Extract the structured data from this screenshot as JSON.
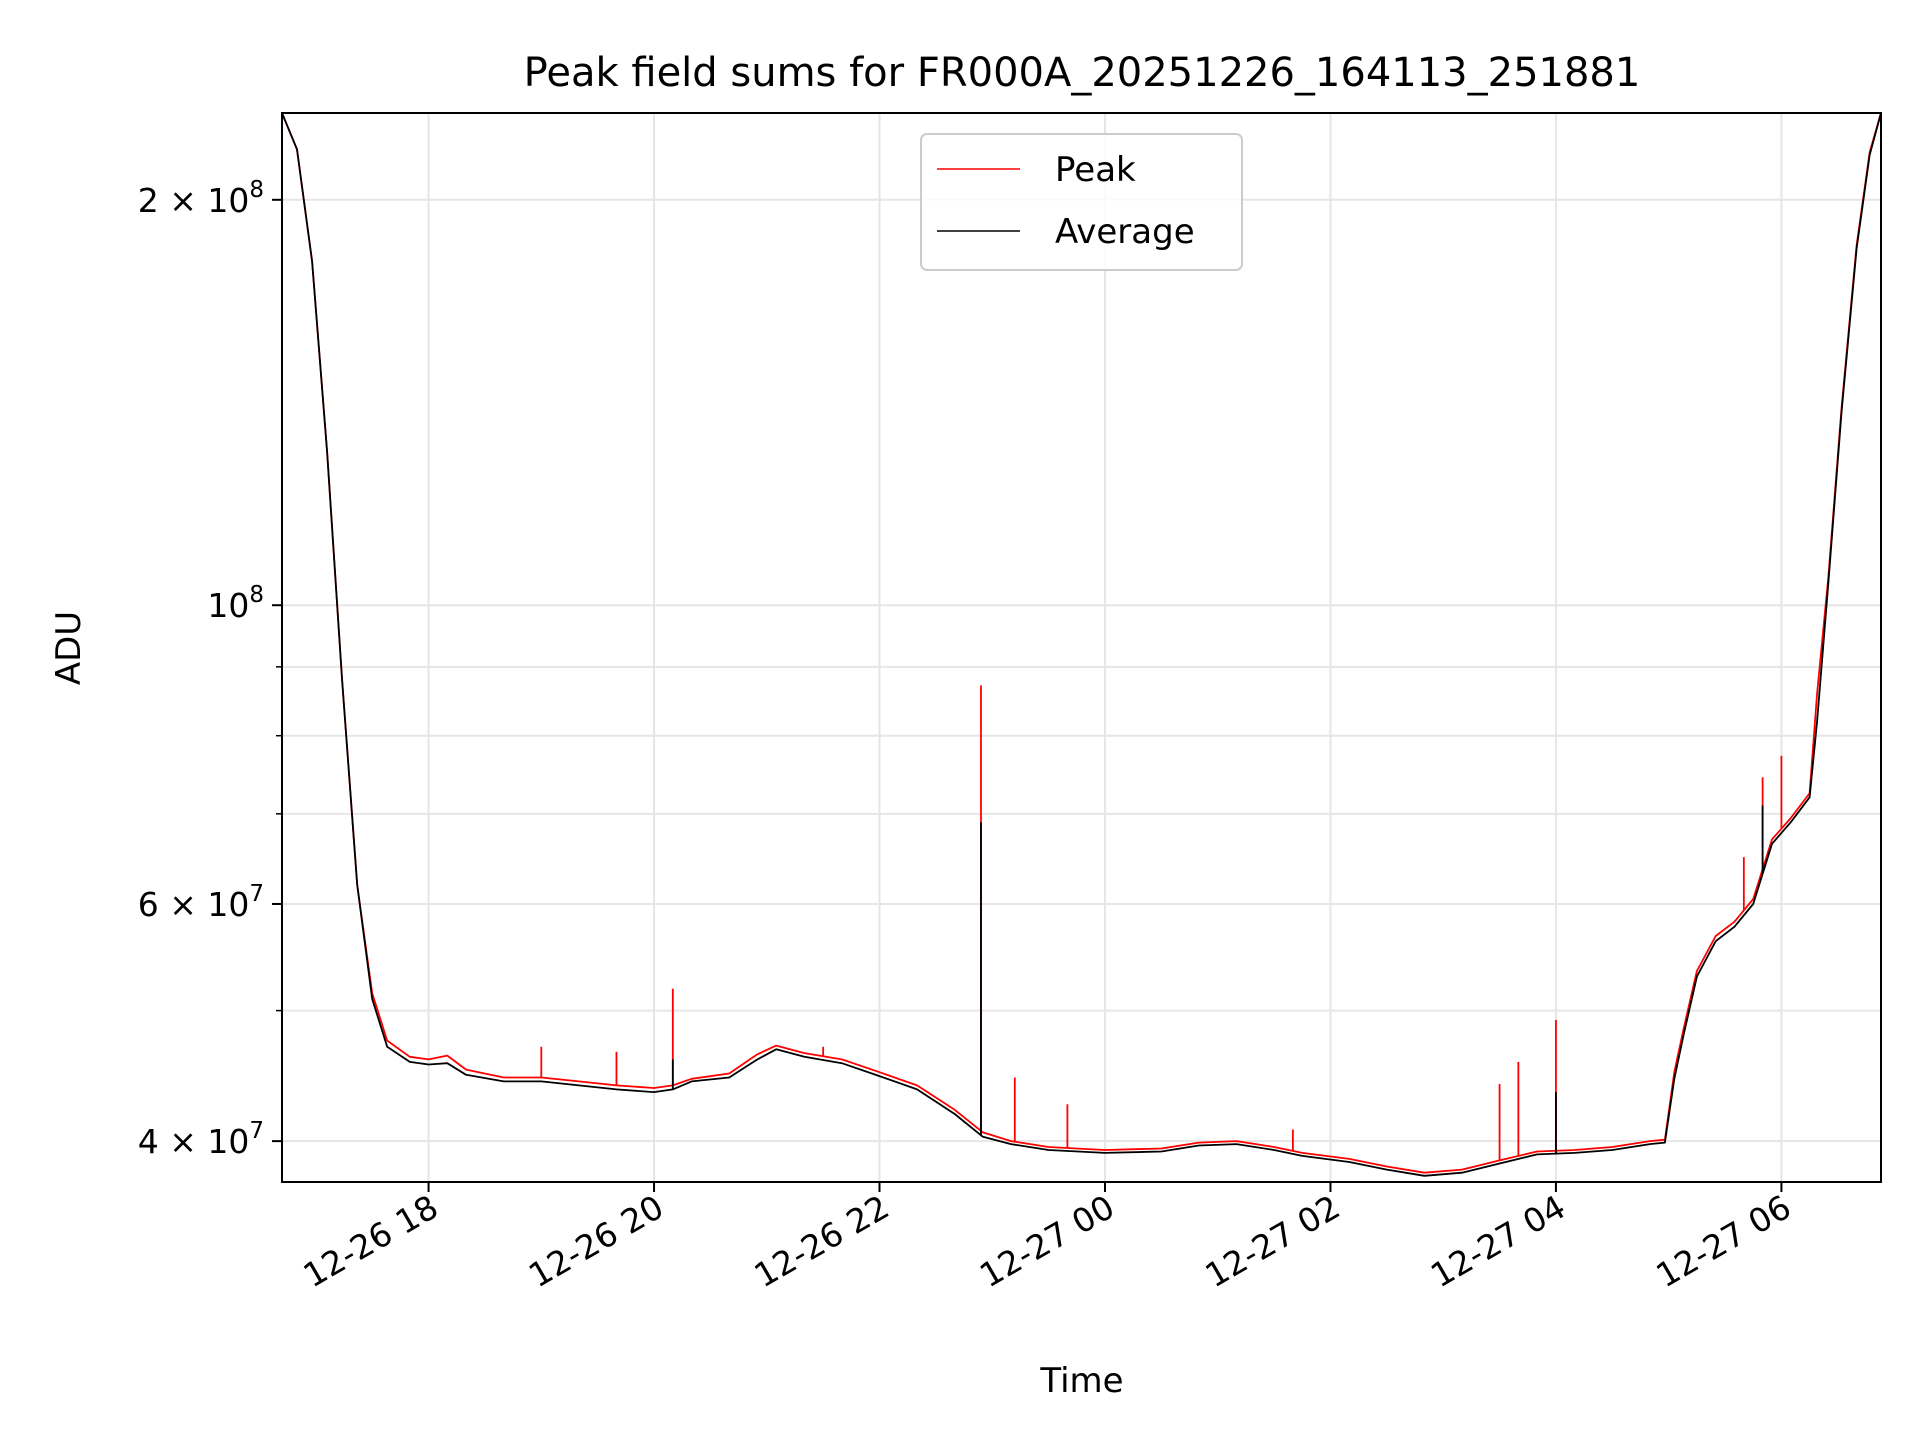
{
  "chart_data": {
    "type": "line",
    "title": "Peak field sums for FR000A_20251226_164113_251881",
    "xlabel": "Time",
    "ylabel": "ADU",
    "yscale": "log",
    "ylim": [
      37300000,
      232000000
    ],
    "xlim": [
      "2025-12-26 16:42",
      "2025-12-27 06:53"
    ],
    "grid": true,
    "legend_position": "top-center",
    "x_ticks": [
      "12-26 18",
      "12-26 20",
      "12-26 22",
      "12-27 00",
      "12-27 02",
      "12-27 04",
      "12-27 06"
    ],
    "x_tick_values": [
      "2025-12-26 18:00",
      "2025-12-26 20:00",
      "2025-12-26 22:00",
      "2025-12-27 00:00",
      "2025-12-27 02:00",
      "2025-12-27 04:00",
      "2025-12-27 06:00"
    ],
    "y_major_ticks": [
      {
        "value": 40000000,
        "mantissa": "4",
        "exponent": "7"
      },
      {
        "value": 60000000,
        "mantissa": "6",
        "exponent": "7"
      },
      {
        "value": 100000000,
        "mantissa": "",
        "exponent": "8"
      },
      {
        "value": 200000000,
        "mantissa": "2",
        "exponent": "8"
      }
    ],
    "y_tick_base": "10",
    "y_tick_times": "×",
    "y_minor_ticks": [
      50000000,
      70000000,
      80000000,
      90000000
    ],
    "series": [
      {
        "name": "Peak",
        "color": "#ff0000",
        "data": [
          [
            "2025-12-26 16:42",
            232000000
          ],
          [
            "2025-12-26 16:50",
            218000000
          ],
          [
            "2025-12-26 16:58",
            180000000
          ],
          [
            "2025-12-26 17:06",
            130000000
          ],
          [
            "2025-12-26 17:14",
            88000000
          ],
          [
            "2025-12-26 17:22",
            62000000
          ],
          [
            "2025-12-26 17:30",
            51500000
          ],
          [
            "2025-12-26 17:38",
            47500000
          ],
          [
            "2025-12-26 17:50",
            46200000
          ],
          [
            "2025-12-26 18:00",
            46000000
          ],
          [
            "2025-12-26 18:10",
            46300000
          ],
          [
            "2025-12-26 18:20",
            45200000
          ],
          [
            "2025-12-26 18:40",
            44600000
          ],
          [
            "2025-12-26 19:00",
            44600000
          ],
          [
            "2025-12-26 19:20",
            44300000
          ],
          [
            "2025-12-26 19:40",
            44000000
          ],
          [
            "2025-12-26 20:00",
            43800000
          ],
          [
            "2025-12-26 20:10",
            44000000
          ],
          [
            "2025-12-26 20:20",
            44500000
          ],
          [
            "2025-12-26 20:40",
            44900000
          ],
          [
            "2025-12-26 20:55",
            46400000
          ],
          [
            "2025-12-26 21:05",
            47100000
          ],
          [
            "2025-12-26 21:20",
            46500000
          ],
          [
            "2025-12-26 21:40",
            46000000
          ],
          [
            "2025-12-26 22:00",
            45000000
          ],
          [
            "2025-12-26 22:20",
            44000000
          ],
          [
            "2025-12-26 22:40",
            42200000
          ],
          [
            "2025-12-26 22:55",
            40600000
          ],
          [
            "2025-12-26 23:10",
            40000000
          ],
          [
            "2025-12-26 23:30",
            39600000
          ],
          [
            "2025-12-27 00:00",
            39400000
          ],
          [
            "2025-12-27 00:30",
            39500000
          ],
          [
            "2025-12-27 00:50",
            39900000
          ],
          [
            "2025-12-27 01:10",
            40000000
          ],
          [
            "2025-12-27 01:30",
            39600000
          ],
          [
            "2025-12-27 01:45",
            39200000
          ],
          [
            "2025-12-27 02:10",
            38800000
          ],
          [
            "2025-12-27 02:30",
            38300000
          ],
          [
            "2025-12-27 02:50",
            37900000
          ],
          [
            "2025-12-27 03:10",
            38100000
          ],
          [
            "2025-12-27 03:30",
            38700000
          ],
          [
            "2025-12-27 03:50",
            39300000
          ],
          [
            "2025-12-27 04:10",
            39400000
          ],
          [
            "2025-12-27 04:30",
            39600000
          ],
          [
            "2025-12-27 04:50",
            40000000
          ],
          [
            "2025-12-27 04:58",
            40100000
          ],
          [
            "2025-12-27 05:03",
            45000000
          ],
          [
            "2025-12-27 05:08",
            48500000
          ],
          [
            "2025-12-27 05:15",
            53500000
          ],
          [
            "2025-12-27 05:25",
            56800000
          ],
          [
            "2025-12-27 05:35",
            58200000
          ],
          [
            "2025-12-27 05:45",
            60500000
          ],
          [
            "2025-12-27 05:55",
            67000000
          ],
          [
            "2025-12-27 06:05",
            69500000
          ],
          [
            "2025-12-27 06:15",
            72500000
          ],
          [
            "2025-12-27 06:19",
            86000000
          ],
          [
            "2025-12-27 06:25",
            105000000
          ],
          [
            "2025-12-27 06:32",
            140000000
          ],
          [
            "2025-12-27 06:40",
            185000000
          ],
          [
            "2025-12-27 06:47",
            217000000
          ],
          [
            "2025-12-27 06:53",
            232000000
          ]
        ],
        "spikes": [
          [
            "2025-12-26 19:00",
            47000000
          ],
          [
            "2025-12-26 19:40",
            46600000
          ],
          [
            "2025-12-26 20:10",
            51900000
          ],
          [
            "2025-12-26 21:30",
            47000000
          ],
          [
            "2025-12-26 22:54",
            87200000
          ],
          [
            "2025-12-26 23:12",
            44600000
          ],
          [
            "2025-12-26 23:40",
            42600000
          ],
          [
            "2025-12-27 01:40",
            40800000
          ],
          [
            "2025-12-27 03:30",
            44100000
          ],
          [
            "2025-12-27 03:40",
            45800000
          ],
          [
            "2025-12-27 04:00",
            49200000
          ],
          [
            "2025-12-27 05:40",
            65000000
          ],
          [
            "2025-12-27 05:50",
            74500000
          ],
          [
            "2025-12-27 06:00",
            77300000
          ]
        ]
      },
      {
        "name": "Average",
        "color": "#000000",
        "data": [
          [
            "2025-12-26 16:42",
            232000000
          ],
          [
            "2025-12-26 16:50",
            218000000
          ],
          [
            "2025-12-26 16:58",
            180000000
          ],
          [
            "2025-12-26 17:06",
            130000000
          ],
          [
            "2025-12-26 17:14",
            88000000
          ],
          [
            "2025-12-26 17:22",
            62000000
          ],
          [
            "2025-12-26 17:30",
            51000000
          ],
          [
            "2025-12-26 17:38",
            47000000
          ],
          [
            "2025-12-26 17:50",
            45800000
          ],
          [
            "2025-12-26 18:00",
            45600000
          ],
          [
            "2025-12-26 18:10",
            45700000
          ],
          [
            "2025-12-26 18:20",
            44800000
          ],
          [
            "2025-12-26 18:40",
            44300000
          ],
          [
            "2025-12-26 19:00",
            44300000
          ],
          [
            "2025-12-26 19:20",
            44000000
          ],
          [
            "2025-12-26 19:40",
            43700000
          ],
          [
            "2025-12-26 20:00",
            43500000
          ],
          [
            "2025-12-26 20:10",
            43700000
          ],
          [
            "2025-12-26 20:20",
            44300000
          ],
          [
            "2025-12-26 20:40",
            44600000
          ],
          [
            "2025-12-26 20:55",
            46000000
          ],
          [
            "2025-12-26 21:05",
            46800000
          ],
          [
            "2025-12-26 21:20",
            46200000
          ],
          [
            "2025-12-26 21:40",
            45700000
          ],
          [
            "2025-12-26 22:00",
            44700000
          ],
          [
            "2025-12-26 22:20",
            43700000
          ],
          [
            "2025-12-26 22:40",
            41900000
          ],
          [
            "2025-12-26 22:55",
            40300000
          ],
          [
            "2025-12-26 23:10",
            39800000
          ],
          [
            "2025-12-26 23:30",
            39400000
          ],
          [
            "2025-12-27 00:00",
            39200000
          ],
          [
            "2025-12-27 00:30",
            39300000
          ],
          [
            "2025-12-27 00:50",
            39700000
          ],
          [
            "2025-12-27 01:10",
            39800000
          ],
          [
            "2025-12-27 01:30",
            39400000
          ],
          [
            "2025-12-27 01:45",
            39000000
          ],
          [
            "2025-12-27 02:10",
            38600000
          ],
          [
            "2025-12-27 02:30",
            38100000
          ],
          [
            "2025-12-27 02:50",
            37700000
          ],
          [
            "2025-12-27 03:10",
            37900000
          ],
          [
            "2025-12-27 03:30",
            38500000
          ],
          [
            "2025-12-27 03:50",
            39100000
          ],
          [
            "2025-12-27 04:10",
            39200000
          ],
          [
            "2025-12-27 04:30",
            39400000
          ],
          [
            "2025-12-27 04:50",
            39800000
          ],
          [
            "2025-12-27 04:58",
            39900000
          ],
          [
            "2025-12-27 05:03",
            44500000
          ],
          [
            "2025-12-27 05:08",
            48000000
          ],
          [
            "2025-12-27 05:15",
            53000000
          ],
          [
            "2025-12-27 05:25",
            56300000
          ],
          [
            "2025-12-27 05:35",
            57700000
          ],
          [
            "2025-12-27 05:45",
            60000000
          ],
          [
            "2025-12-27 05:55",
            66500000
          ],
          [
            "2025-12-27 06:05",
            69000000
          ],
          [
            "2025-12-27 06:15",
            72000000
          ],
          [
            "2025-12-27 06:19",
            82000000
          ],
          [
            "2025-12-27 06:25",
            104000000
          ],
          [
            "2025-12-27 06:32",
            139000000
          ],
          [
            "2025-12-27 06:40",
            184000000
          ],
          [
            "2025-12-27 06:47",
            216000000
          ],
          [
            "2025-12-27 06:53",
            232000000
          ]
        ],
        "spikes": [
          [
            "2025-12-26 20:10",
            46000000
          ],
          [
            "2025-12-26 22:54",
            69000000
          ],
          [
            "2025-12-27 04:00",
            43500000
          ],
          [
            "2025-12-27 05:50",
            71000000
          ]
        ]
      }
    ]
  }
}
